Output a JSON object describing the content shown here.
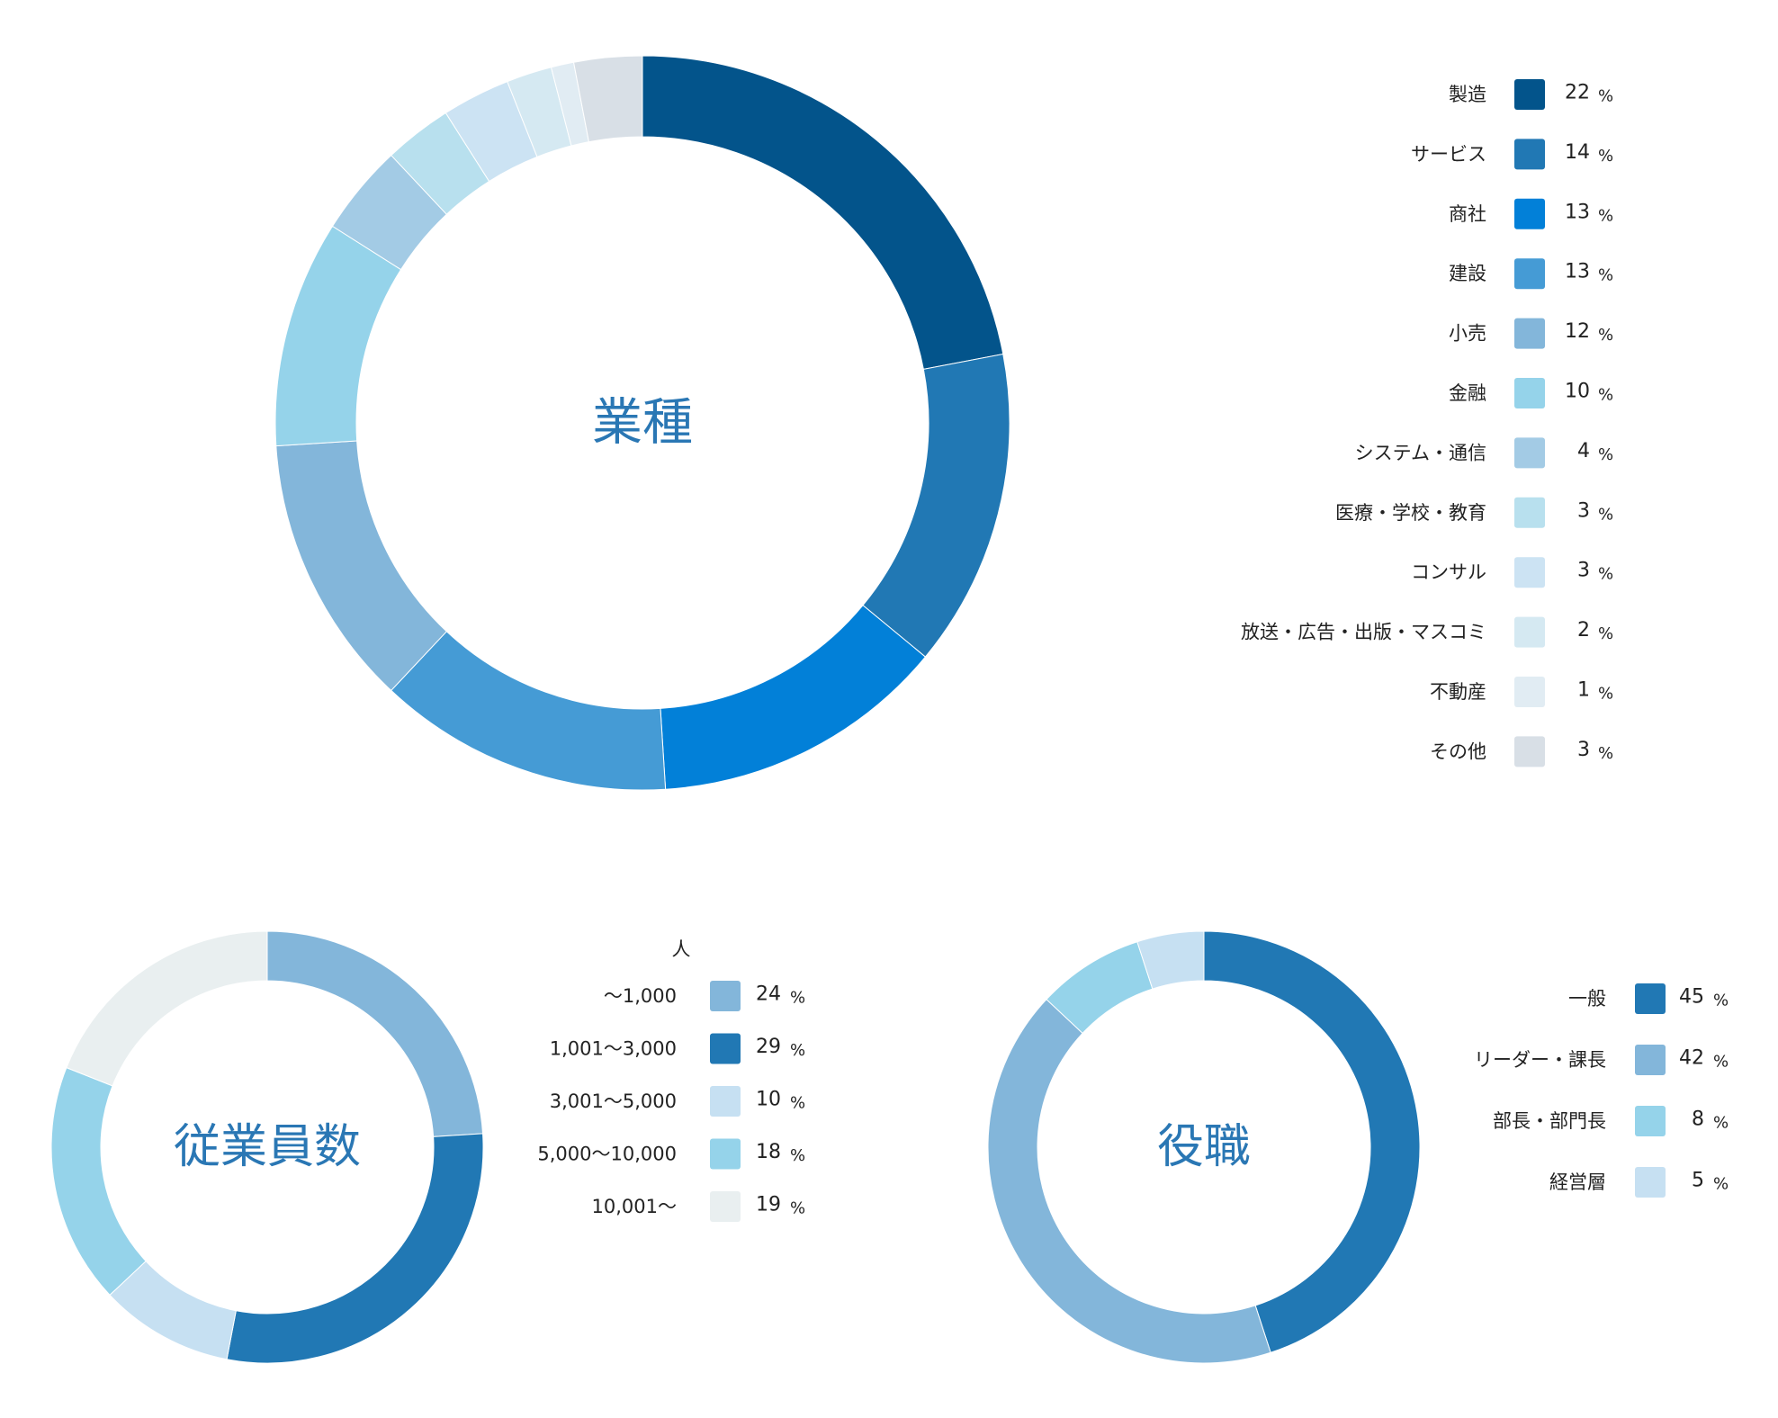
{
  "chart_data": [
    {
      "type": "pie",
      "title": "業種",
      "unit_label": "",
      "categories": [
        "製造",
        "サービス",
        "商社",
        "建設",
        "小売",
        "金融",
        "システム・通信",
        "医療・学校・教育",
        "コンサル",
        "放送・広告・出版・マスコミ",
        "不動産",
        "その他"
      ],
      "values": [
        22,
        14,
        13,
        13,
        12,
        10,
        4,
        3,
        3,
        2,
        1,
        3
      ],
      "value_suffix": "%",
      "colors": [
        "#03548b",
        "#2178b4",
        "#0280d8",
        "#459bd5",
        "#83b6da",
        "#95d3ea",
        "#a3cbe5",
        "#b8e0ee",
        "#cce3f3",
        "#d5e9f2",
        "#e1ecf3",
        "#d8dfe6"
      ]
    },
    {
      "type": "pie",
      "title": "従業員数",
      "unit_label": "人",
      "categories": [
        "〜1,000",
        "1,001〜3,000",
        "3,001〜5,000",
        "5,000〜10,000",
        "10,001〜"
      ],
      "values": [
        24,
        29,
        10,
        18,
        19
      ],
      "value_suffix": "%",
      "colors": [
        "#83b6da",
        "#2178b4",
        "#c6e0f2",
        "#95d3ea",
        "#e9eff0"
      ]
    },
    {
      "type": "pie",
      "title": "役職",
      "unit_label": "",
      "categories": [
        "一般",
        "リーダー・課長",
        "部長・部門長",
        "経営層"
      ],
      "values": [
        45,
        42,
        8,
        5
      ],
      "value_suffix": "%",
      "colors": [
        "#2178b4",
        "#83b6da",
        "#95d3ea",
        "#c6e0f2"
      ]
    }
  ]
}
